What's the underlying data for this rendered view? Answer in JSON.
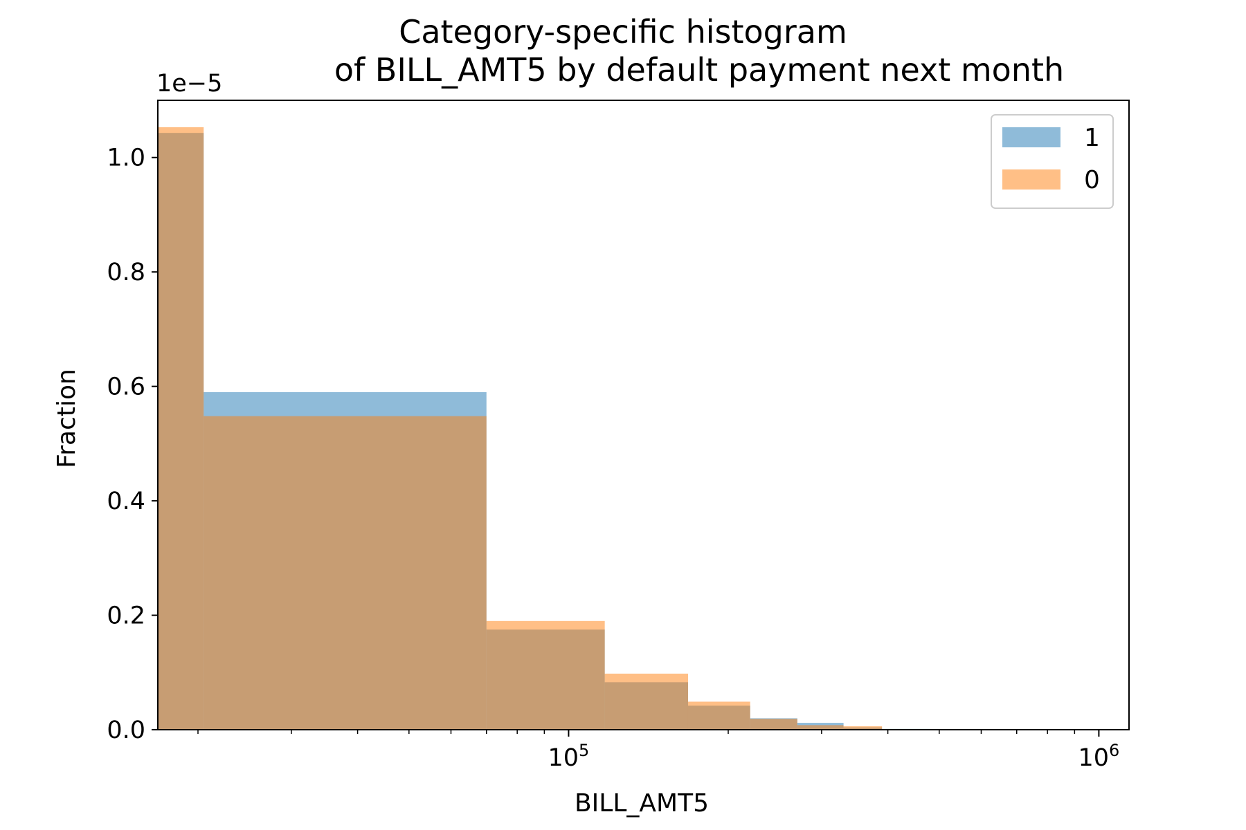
{
  "chart_data": {
    "type": "histogram",
    "title": "Category-specific histogram",
    "subtitle": "of BILL_AMT5 by default payment next month",
    "xlabel": "BILL_AMT5",
    "ylabel": "Fraction",
    "x_scale": "log",
    "xlim": [
      16800,
      1140000
    ],
    "ylim": [
      0,
      1.1e-05
    ],
    "y_offset_label": "1e−5",
    "y_ticks": [
      0.0,
      2e-06,
      4e-06,
      6e-06,
      8e-06,
      1e-05
    ],
    "y_tick_labels": [
      "0.0",
      "0.2",
      "0.4",
      "0.6",
      "0.8",
      "1.0"
    ],
    "x_major_ticks": [
      {
        "value": 100000,
        "base": "10",
        "exp": "5"
      },
      {
        "value": 1000000,
        "base": "10",
        "exp": "6"
      }
    ],
    "bin_edges": [
      16800,
      20500,
      70000,
      117000,
      168000,
      220000,
      270000,
      330000,
      390000,
      480000
    ],
    "series": [
      {
        "name": "1",
        "color": "#1f77b4",
        "alpha": 0.5,
        "values": [
          1.043e-05,
          5.9e-06,
          1.75e-06,
          8.3e-07,
          4.2e-07,
          2e-07,
          1.2e-07,
          4e-08,
          1.5e-08
        ]
      },
      {
        "name": "0",
        "color": "#ff7f0e",
        "alpha": 0.5,
        "values": [
          1.053e-05,
          5.48e-06,
          1.9e-06,
          9.8e-07,
          4.9e-07,
          1.9e-07,
          8e-08,
          6e-08,
          1e-08
        ]
      }
    ],
    "legend_position": "top-right",
    "grid": false
  }
}
